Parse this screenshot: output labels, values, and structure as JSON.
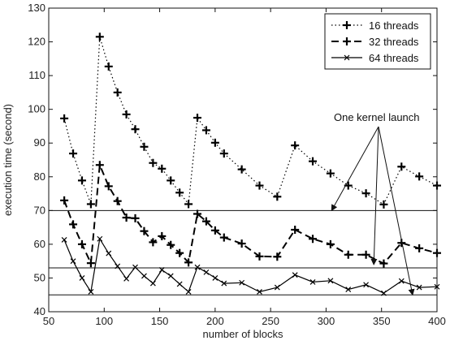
{
  "chart_data": {
    "type": "line",
    "xlabel": "number of blocks",
    "ylabel": "execution time (second)",
    "xlim": [
      50,
      400
    ],
    "ylim": [
      40,
      130
    ],
    "xticks": [
      "50",
      "100",
      "150",
      "200",
      "250",
      "300",
      "350",
      "400"
    ],
    "yticks": [
      "40",
      "50",
      "60",
      "70",
      "80",
      "90",
      "100",
      "110",
      "120",
      "130"
    ],
    "grid": false,
    "legend_position": "top-right",
    "series": [
      {
        "name": "16 threads",
        "line_style": "dotted",
        "marker": "plus",
        "x": [
          64,
          72,
          80,
          88,
          96,
          104,
          112,
          120,
          128,
          136,
          144,
          152,
          160,
          168,
          176,
          184,
          192,
          200,
          208,
          224,
          240,
          256,
          272,
          288,
          304,
          320,
          336,
          352,
          368,
          384,
          400
        ],
        "y": [
          97.3,
          86.9,
          78.9,
          71.9,
          121.5,
          112.7,
          105.0,
          98.5,
          94.1,
          88.9,
          84.1,
          82.4,
          78.9,
          75.3,
          71.9,
          97.5,
          93.8,
          90.1,
          86.9,
          82.2,
          77.4,
          74.1,
          89.3,
          84.6,
          81.0,
          77.4,
          75.1,
          71.8,
          83.0,
          80.1,
          77.4
        ]
      },
      {
        "name": "32 threads",
        "line_style": "dashed",
        "marker": "plus",
        "x": [
          64,
          72,
          80,
          88,
          96,
          104,
          112,
          120,
          128,
          136,
          144,
          152,
          160,
          168,
          176,
          184,
          192,
          200,
          208,
          224,
          240,
          256,
          272,
          288,
          304,
          320,
          336,
          352,
          368,
          384,
          400
        ],
        "y": [
          73.0,
          65.9,
          60.0,
          54.4,
          83.5,
          77.2,
          72.8,
          67.9,
          67.7,
          63.9,
          60.6,
          62.4,
          59.8,
          57.4,
          54.6,
          69.0,
          66.8,
          64.1,
          62.0,
          60.2,
          56.4,
          56.3,
          64.3,
          61.6,
          60.0,
          56.9,
          56.9,
          54.3,
          60.4,
          58.8,
          57.4
        ]
      },
      {
        "name": "64 threads",
        "line_style": "solid",
        "marker": "x",
        "x": [
          64,
          72,
          80,
          88,
          96,
          104,
          112,
          120,
          128,
          136,
          144,
          152,
          160,
          168,
          176,
          184,
          192,
          200,
          208,
          224,
          240,
          256,
          272,
          288,
          304,
          320,
          336,
          352,
          368,
          384,
          400
        ],
        "y": [
          61.3,
          55.0,
          50.0,
          45.9,
          61.6,
          57.3,
          53.5,
          49.8,
          53.2,
          50.6,
          48.4,
          52.4,
          50.6,
          48.2,
          45.9,
          53.2,
          51.7,
          50.0,
          48.4,
          48.6,
          45.9,
          47.2,
          50.9,
          48.8,
          49.2,
          46.6,
          48.0,
          45.5,
          49.1,
          47.2,
          47.4
        ]
      }
    ],
    "reference_lines_y": [
      70,
      53,
      45
    ],
    "annotation": {
      "text": "One kernel launch",
      "arrow_targets": [
        {
          "x": 305,
          "y": 70
        },
        {
          "x": 343,
          "y": 54
        },
        {
          "x": 378,
          "y": 45
        }
      ]
    }
  }
}
